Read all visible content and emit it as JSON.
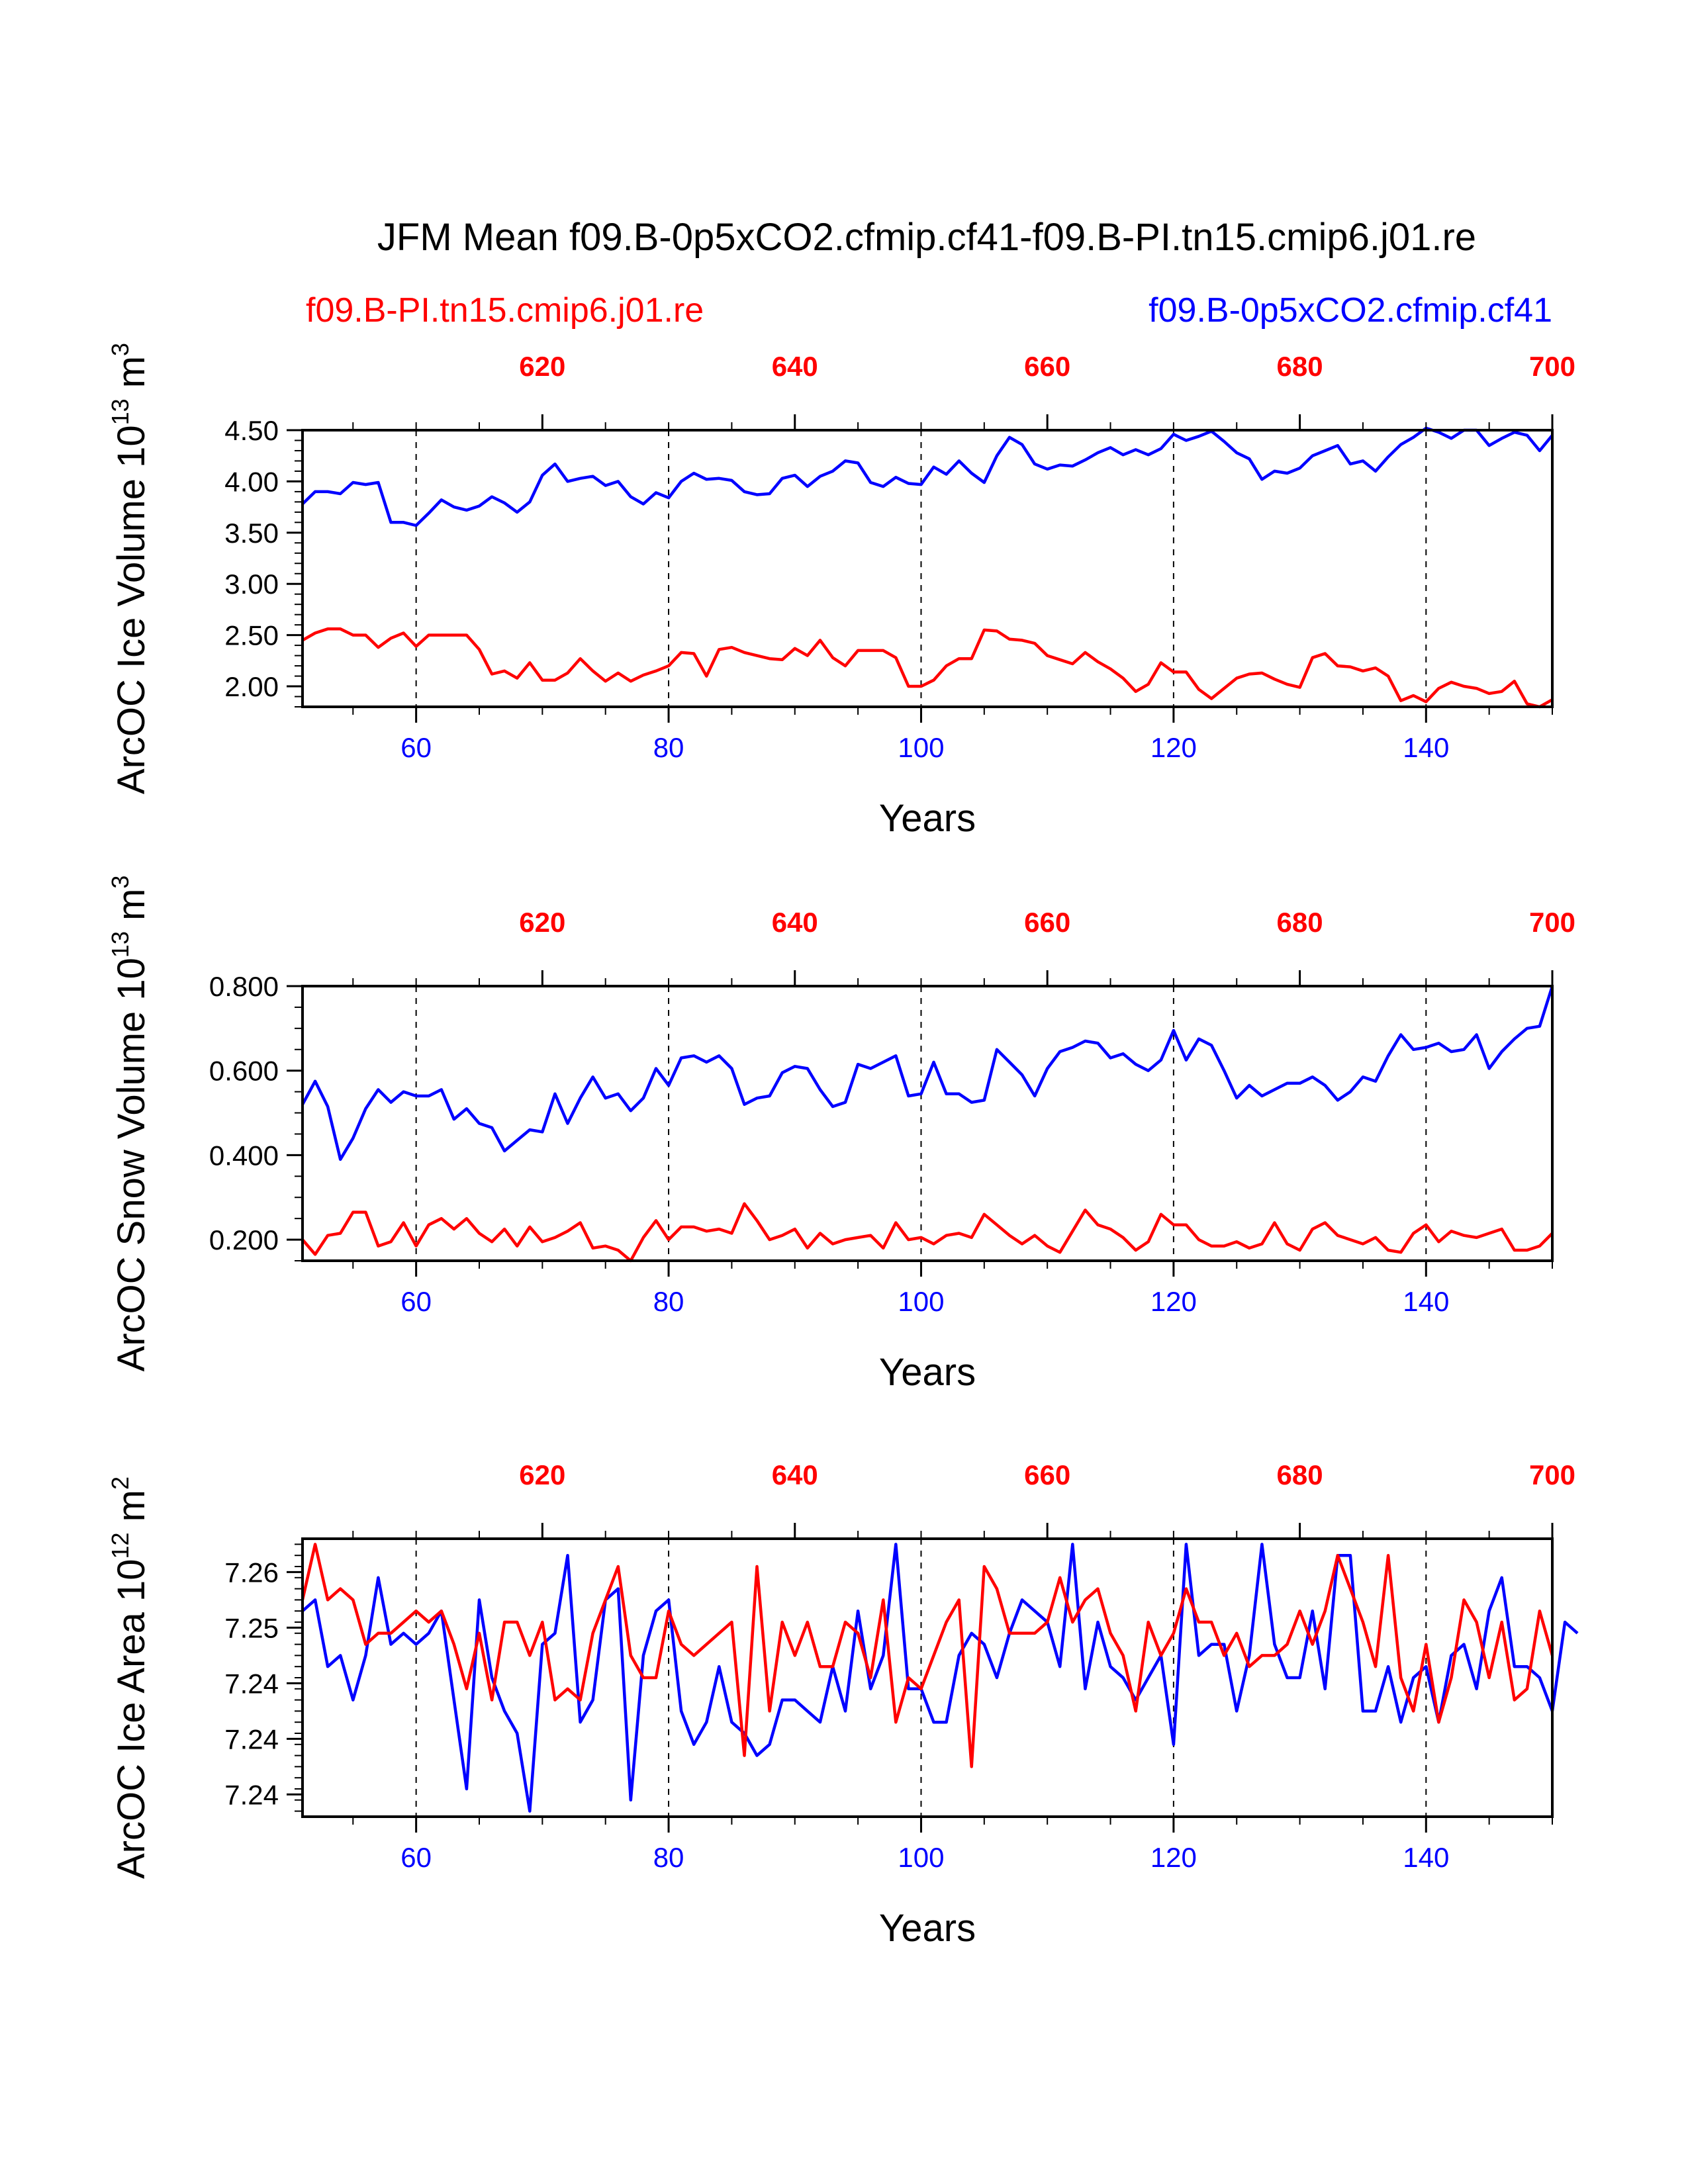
{
  "title": "JFM Mean f09.B-0p5xCO2.cfmip.cf41-f09.B-PI.tn15.cmip6.j01.re",
  "legend": {
    "left_label": "f09.B-PI.tn15.cmip6.j01.re",
    "right_label": "f09.B-0p5xCO2.cfmip.cf41"
  },
  "colors": {
    "red": "#ff0000",
    "blue": "#0000ff",
    "axis": "#000000"
  },
  "chart_data": [
    {
      "type": "line",
      "ylabel_main": "ArcOC Ice Volume 10",
      "ylabel_exp": "13",
      "ylabel_unit": " m",
      "ylabel_unit_exp": "3",
      "xlabel": "Years",
      "xlim": [
        51,
        150
      ],
      "ylim": [
        1.8,
        4.5
      ],
      "yticks": [
        2.0,
        2.5,
        3.0,
        3.5,
        4.0,
        4.5
      ],
      "ytick_labels": [
        "2.00",
        "2.50",
        "3.00",
        "3.50",
        "4.00",
        "4.50"
      ],
      "yminor_step": 0.1,
      "xticks": [
        60,
        80,
        100,
        120,
        140
      ],
      "xtick_labels": [
        "60",
        "80",
        "100",
        "120",
        "140"
      ],
      "top_ticks": [
        620,
        640,
        660,
        680,
        700
      ],
      "top_tick_labels": [
        "620",
        "640",
        "660",
        "680",
        "700"
      ],
      "top_offset": 550,
      "vlines": [
        60,
        80,
        100,
        120,
        140
      ],
      "series": [
        {
          "name": "f09.B-0p5xCO2.cfmip.cf41",
          "color": "blue",
          "values": [
            3.78,
            3.9,
            3.9,
            3.88,
            3.99,
            3.97,
            3.99,
            3.6,
            3.6,
            3.57,
            3.69,
            3.82,
            3.75,
            3.72,
            3.76,
            3.85,
            3.79,
            3.7,
            3.8,
            4.06,
            4.17,
            4.0,
            4.03,
            4.05,
            3.96,
            4.0,
            3.85,
            3.78,
            3.89,
            3.84,
            4.0,
            4.08,
            4.02,
            4.03,
            4.01,
            3.9,
            3.87,
            3.88,
            4.03,
            4.06,
            3.95,
            4.05,
            4.1,
            4.2,
            4.18,
            3.99,
            3.95,
            4.04,
            3.98,
            3.97,
            4.14,
            4.07,
            4.2,
            4.08,
            3.99,
            4.25,
            4.43,
            4.36,
            4.17,
            4.12,
            4.16,
            4.15,
            4.21,
            4.28,
            4.33,
            4.26,
            4.31,
            4.26,
            4.32,
            4.46,
            4.4,
            4.44,
            4.49,
            4.39,
            4.28,
            4.22,
            4.02,
            4.1,
            4.08,
            4.13,
            4.25,
            4.3,
            4.35,
            4.17,
            4.2,
            4.1,
            4.24,
            4.36,
            4.43,
            4.52,
            4.48,
            4.42,
            4.5,
            4.5,
            4.35,
            4.42,
            4.48,
            4.45,
            4.3,
            4.45
          ]
        },
        {
          "name": "f09.B-PI.tn15.cmip6.j01.re",
          "color": "red",
          "values": [
            2.45,
            2.52,
            2.56,
            2.56,
            2.5,
            2.5,
            2.38,
            2.47,
            2.52,
            2.39,
            2.5,
            2.5,
            2.5,
            2.5,
            2.36,
            2.12,
            2.15,
            2.08,
            2.23,
            2.06,
            2.06,
            2.13,
            2.27,
            2.15,
            2.05,
            2.13,
            2.05,
            2.11,
            2.15,
            2.2,
            2.33,
            2.32,
            2.1,
            2.36,
            2.38,
            2.33,
            2.3,
            2.27,
            2.26,
            2.37,
            2.3,
            2.45,
            2.28,
            2.2,
            2.35,
            2.35,
            2.35,
            2.28,
            2.0,
            2.0,
            2.06,
            2.2,
            2.27,
            2.27,
            2.55,
            2.54,
            2.46,
            2.45,
            2.42,
            2.3,
            2.26,
            2.22,
            2.33,
            2.24,
            2.17,
            2.08,
            1.95,
            2.02,
            2.23,
            2.14,
            2.14,
            1.97,
            1.88,
            1.98,
            2.08,
            2.12,
            2.13,
            2.07,
            2.02,
            1.99,
            2.28,
            2.32,
            2.2,
            2.19,
            2.15,
            2.18,
            2.1,
            1.86,
            1.91,
            1.85,
            1.98,
            2.04,
            2.0,
            1.98,
            1.93,
            1.95,
            2.05,
            1.83,
            1.8,
            1.87
          ]
        }
      ]
    },
    {
      "type": "line",
      "ylabel_main": "ArcOC Snow Volume 10",
      "ylabel_exp": "13",
      "ylabel_unit": " m",
      "ylabel_unit_exp": "3",
      "xlabel": "Years",
      "xlim": [
        51,
        150
      ],
      "ylim": [
        0.15,
        0.8
      ],
      "yticks": [
        0.2,
        0.4,
        0.6,
        0.8
      ],
      "ytick_labels": [
        "0.200",
        "0.400",
        "0.600",
        "0.800"
      ],
      "yminor_step": 0.05,
      "xticks": [
        60,
        80,
        100,
        120,
        140
      ],
      "xtick_labels": [
        "60",
        "80",
        "100",
        "120",
        "140"
      ],
      "top_ticks": [
        620,
        640,
        660,
        680,
        700
      ],
      "top_tick_labels": [
        "620",
        "640",
        "660",
        "680",
        "700"
      ],
      "top_offset": 550,
      "vlines": [
        60,
        80,
        100,
        120,
        140
      ],
      "series": [
        {
          "name": "f09.B-0p5xCO2.cfmip.cf41",
          "color": "blue",
          "values": [
            0.52,
            0.575,
            0.515,
            0.39,
            0.44,
            0.51,
            0.555,
            0.525,
            0.55,
            0.54,
            0.54,
            0.555,
            0.485,
            0.51,
            0.475,
            0.465,
            0.41,
            0.435,
            0.46,
            0.455,
            0.545,
            0.475,
            0.535,
            0.585,
            0.535,
            0.545,
            0.505,
            0.535,
            0.605,
            0.565,
            0.63,
            0.635,
            0.62,
            0.635,
            0.605,
            0.52,
            0.535,
            0.54,
            0.595,
            0.61,
            0.605,
            0.555,
            0.515,
            0.525,
            0.615,
            0.605,
            0.62,
            0.635,
            0.54,
            0.545,
            0.62,
            0.545,
            0.545,
            0.525,
            0.53,
            0.65,
            0.62,
            0.59,
            0.54,
            0.605,
            0.645,
            0.655,
            0.67,
            0.665,
            0.63,
            0.64,
            0.615,
            0.6,
            0.625,
            0.695,
            0.625,
            0.675,
            0.66,
            0.6,
            0.535,
            0.565,
            0.54,
            0.555,
            0.57,
            0.57,
            0.585,
            0.565,
            0.53,
            0.55,
            0.585,
            0.575,
            0.635,
            0.685,
            0.65,
            0.655,
            0.665,
            0.645,
            0.65,
            0.685,
            0.605,
            0.645,
            0.675,
            0.7,
            0.705,
            0.8
          ]
        },
        {
          "name": "f09.B-PI.tn15.cmip6.j01.re",
          "color": "red",
          "values": [
            0.2,
            0.165,
            0.21,
            0.215,
            0.265,
            0.265,
            0.185,
            0.195,
            0.24,
            0.185,
            0.235,
            0.25,
            0.225,
            0.25,
            0.215,
            0.195,
            0.225,
            0.185,
            0.23,
            0.195,
            0.205,
            0.22,
            0.24,
            0.18,
            0.185,
            0.175,
            0.15,
            0.205,
            0.245,
            0.2,
            0.23,
            0.23,
            0.22,
            0.225,
            0.215,
            0.285,
            0.245,
            0.2,
            0.21,
            0.225,
            0.18,
            0.215,
            0.19,
            0.2,
            0.205,
            0.21,
            0.18,
            0.24,
            0.2,
            0.205,
            0.19,
            0.21,
            0.215,
            0.205,
            0.26,
            0.235,
            0.21,
            0.19,
            0.21,
            0.185,
            0.17,
            0.22,
            0.27,
            0.235,
            0.225,
            0.205,
            0.175,
            0.195,
            0.26,
            0.235,
            0.235,
            0.2,
            0.185,
            0.185,
            0.195,
            0.18,
            0.19,
            0.24,
            0.19,
            0.175,
            0.225,
            0.24,
            0.21,
            0.2,
            0.19,
            0.205,
            0.175,
            0.17,
            0.215,
            0.235,
            0.195,
            0.22,
            0.21,
            0.205,
            0.215,
            0.225,
            0.175,
            0.175,
            0.185,
            0.215
          ]
        }
      ]
    },
    {
      "type": "line",
      "ylabel_main": "ArcOC Ice Area 10",
      "ylabel_exp": "12",
      "ylabel_unit": " m",
      "ylabel_unit_exp": "2",
      "xlabel": "Years",
      "xlim": [
        51,
        150
      ],
      "ylim": [
        7.2355,
        7.2605
      ],
      "yticks": [
        7.2375,
        7.2425,
        7.2475,
        7.2525,
        7.2575
      ],
      "ytick_labels": [
        "7.24",
        "7.24",
        "7.24",
        "7.25",
        "7.26"
      ],
      "yminor_step": 0.001,
      "xticks": [
        60,
        80,
        100,
        120,
        140
      ],
      "xtick_labels": [
        "60",
        "80",
        "100",
        "120",
        "140"
      ],
      "top_ticks": [
        620,
        640,
        660,
        680,
        700
      ],
      "top_tick_labels": [
        "620",
        "640",
        "660",
        "680",
        "700"
      ],
      "top_offset": 550,
      "vlines": [
        60,
        80,
        100,
        120,
        140
      ],
      "series": [
        {
          "name": "f09.B-0p5xCO2.cfmip.cf41",
          "color": "blue",
          "values": [
            7.254,
            7.255,
            7.249,
            7.25,
            7.246,
            7.25,
            7.257,
            7.251,
            7.252,
            7.251,
            7.252,
            7.254,
            7.246,
            7.238,
            7.255,
            7.248,
            7.245,
            7.243,
            7.236,
            7.251,
            7.252,
            7.259,
            7.244,
            7.246,
            7.255,
            7.256,
            7.237,
            7.25,
            7.254,
            7.255,
            7.245,
            7.242,
            7.244,
            7.249,
            7.244,
            7.243,
            7.241,
            7.242,
            7.246,
            7.246,
            7.245,
            7.244,
            7.249,
            7.245,
            7.254,
            7.247,
            7.25,
            7.26,
            7.247,
            7.247,
            7.244,
            7.244,
            7.25,
            7.252,
            7.251,
            7.248,
            7.252,
            7.255,
            7.254,
            7.253,
            7.249,
            7.26,
            7.247,
            7.253,
            7.249,
            7.248,
            7.246,
            7.248,
            7.25,
            7.242,
            7.26,
            7.25,
            7.251,
            7.251,
            7.245,
            7.25,
            7.26,
            7.251,
            7.248,
            7.248,
            7.254,
            7.247,
            7.259,
            7.259,
            7.245,
            7.245,
            7.249,
            7.244,
            7.248,
            7.249,
            7.244,
            7.25,
            7.251,
            7.247,
            7.254,
            7.257,
            7.249,
            7.249,
            7.248,
            7.245,
            7.253,
            7.252
          ]
        },
        {
          "name": "f09.B-PI.tn15.cmip6.j01.re",
          "color": "red",
          "values": [
            7.255,
            7.26,
            7.255,
            7.256,
            7.255,
            7.251,
            7.252,
            7.252,
            7.253,
            7.254,
            7.253,
            7.254,
            7.251,
            7.247,
            7.252,
            7.246,
            7.253,
            7.253,
            7.25,
            7.253,
            7.246,
            7.247,
            7.246,
            7.252,
            7.255,
            7.258,
            7.25,
            7.248,
            7.248,
            7.254,
            7.251,
            7.25,
            7.251,
            7.252,
            7.253,
            7.241,
            7.258,
            7.245,
            7.253,
            7.25,
            7.253,
            7.249,
            7.249,
            7.253,
            7.252,
            7.248,
            7.255,
            7.244,
            7.248,
            7.247,
            7.25,
            7.253,
            7.255,
            7.24,
            7.258,
            7.256,
            7.252,
            7.252,
            7.252,
            7.253,
            7.257,
            7.253,
            7.255,
            7.256,
            7.252,
            7.25,
            7.245,
            7.253,
            7.25,
            7.252,
            7.256,
            7.253,
            7.253,
            7.25,
            7.252,
            7.249,
            7.25,
            7.25,
            7.251,
            7.254,
            7.251,
            7.254,
            7.259,
            7.256,
            7.253,
            7.249,
            7.259,
            7.248,
            7.245,
            7.251,
            7.244,
            7.248,
            7.255,
            7.253,
            7.248,
            7.253,
            7.246,
            7.247,
            7.254,
            7.25
          ]
        }
      ]
    }
  ]
}
